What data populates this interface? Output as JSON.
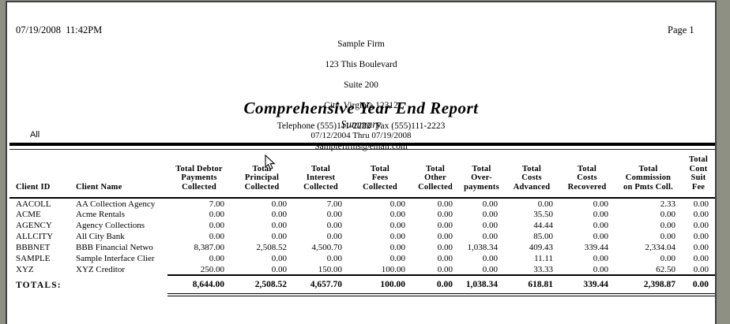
{
  "report": {
    "printed_datetime": "07/19/2008  11:42PM",
    "page_label": "Page 1",
    "firm": {
      "name": "Sample Firm",
      "address_line1": "123 This Boulevard",
      "address_line2": "Suite 200",
      "address_line3": "City, Virginia 12312",
      "phone_fax": "Telephone (555)111-2222  Fax (555)111-2223",
      "email": "Samplefirms@email.com"
    },
    "title": "Comprehensive Year End Report",
    "subtitle": "Summary",
    "scope_label": "All",
    "date_range": "07/12/2004 Thru 07/19/2008"
  },
  "table": {
    "headers": [
      {
        "lines": [
          "Client ID"
        ],
        "align": "left"
      },
      {
        "lines": [
          "Client Name"
        ],
        "align": "left"
      },
      {
        "lines": [
          "Total Debtor",
          "Payments",
          "Collected"
        ],
        "align": "center"
      },
      {
        "lines": [
          "Total",
          "Principal",
          "Collected"
        ],
        "align": "center"
      },
      {
        "lines": [
          "Total",
          "Interest",
          "Collected"
        ],
        "align": "center"
      },
      {
        "lines": [
          "Total",
          "Fees",
          "Collected"
        ],
        "align": "center"
      },
      {
        "lines": [
          "Total",
          "Other",
          "Collected"
        ],
        "align": "center"
      },
      {
        "lines": [
          "Total",
          "Over-",
          "payments"
        ],
        "align": "center"
      },
      {
        "lines": [
          "Total",
          "Costs",
          "Advanced"
        ],
        "align": "center"
      },
      {
        "lines": [
          "Total",
          "Costs",
          "Recovered"
        ],
        "align": "center"
      },
      {
        "lines": [
          "Total",
          "Commission",
          "on Pmts Coll."
        ],
        "align": "center"
      },
      {
        "lines": [
          "Total",
          "Cont Suit",
          "Fee"
        ],
        "align": "center"
      }
    ],
    "rows": [
      {
        "client_id": "AACOLL",
        "client_name": "AA Collection Agency",
        "values": [
          "7.00",
          "0.00",
          "7.00",
          "0.00",
          "0.00",
          "0.00",
          "0.00",
          "0.00",
          "2.33",
          "0.00"
        ]
      },
      {
        "client_id": "ACME",
        "client_name": "Acme Rentals",
        "values": [
          "0.00",
          "0.00",
          "0.00",
          "0.00",
          "0.00",
          "0.00",
          "35.50",
          "0.00",
          "0.00",
          "0.00"
        ]
      },
      {
        "client_id": "AGENCY",
        "client_name": "Agency Collections",
        "values": [
          "0.00",
          "0.00",
          "0.00",
          "0.00",
          "0.00",
          "0.00",
          "44.44",
          "0.00",
          "0.00",
          "0.00"
        ]
      },
      {
        "client_id": "ALLCITY",
        "client_name": "All City Bank",
        "values": [
          "0.00",
          "0.00",
          "0.00",
          "0.00",
          "0.00",
          "0.00",
          "85.00",
          "0.00",
          "0.00",
          "0.00"
        ]
      },
      {
        "client_id": "BBBNET",
        "client_name": "BBB Financial Netwo",
        "values": [
          "8,387.00",
          "2,508.52",
          "4,500.70",
          "0.00",
          "0.00",
          "1,038.34",
          "409.43",
          "339.44",
          "2,334.04",
          "0.00"
        ]
      },
      {
        "client_id": "SAMPLE",
        "client_name": "Sample Interface Clier",
        "values": [
          "0.00",
          "0.00",
          "0.00",
          "0.00",
          "0.00",
          "0.00",
          "11.11",
          "0.00",
          "0.00",
          "0.00"
        ]
      },
      {
        "client_id": "XYZ",
        "client_name": "XYZ Creditor",
        "values": [
          "250.00",
          "0.00",
          "150.00",
          "100.00",
          "0.00",
          "0.00",
          "33.33",
          "0.00",
          "62.50",
          "0.00"
        ]
      }
    ],
    "totals": {
      "label": "TOTALS:",
      "values": [
        "8,644.00",
        "2,508.52",
        "4,657.70",
        "100.00",
        "0.00",
        "1,038.34",
        "618.81",
        "339.44",
        "2,398.87",
        "0.00"
      ]
    }
  },
  "colors": {
    "page_background": "#ffffff",
    "outer_background": "#8e9084",
    "page_border": "#404040",
    "text": "#000000",
    "rule": "#000000"
  }
}
